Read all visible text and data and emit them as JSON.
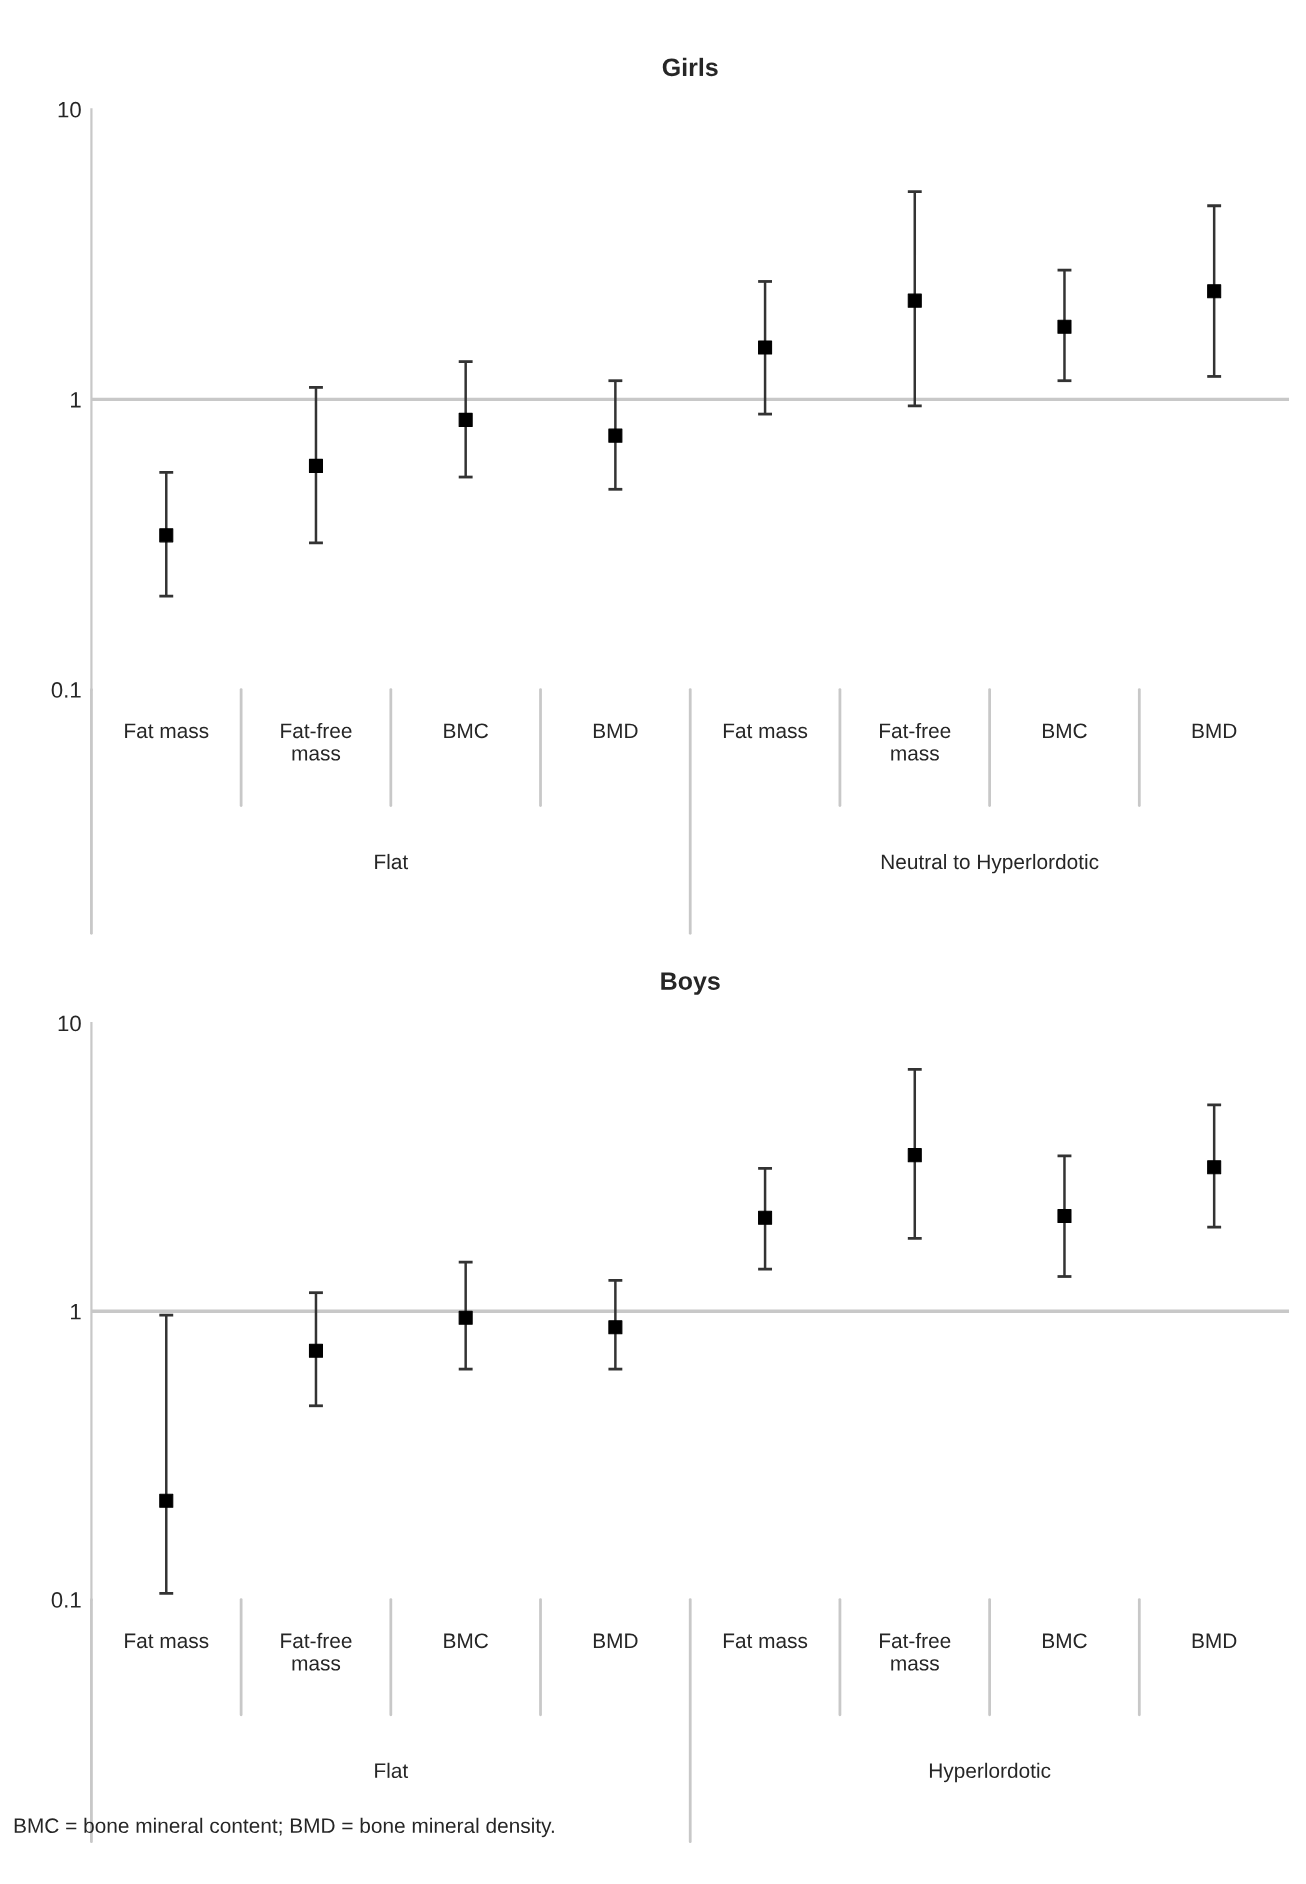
{
  "chart_data": [
    {
      "type": "scatter",
      "title": "Girls",
      "categories": [
        "Fat mass",
        "Fat-free\nmass",
        "BMC",
        "BMD",
        "Fat mass",
        "Fat-free\nmass",
        "BMC",
        "BMD"
      ],
      "series": [
        {
          "color": "#000000",
          "values": [
            0.34,
            0.59,
            0.85,
            0.75,
            1.51,
            2.19,
            1.78,
            2.36
          ],
          "errors": [
            [
              0.21,
              0.56
            ],
            [
              0.32,
              1.1
            ],
            [
              0.54,
              1.35
            ],
            [
              0.49,
              1.16
            ],
            [
              0.89,
              2.55
            ],
            [
              0.95,
              5.2
            ],
            [
              1.16,
              2.79
            ],
            [
              1.2,
              4.65
            ]
          ]
        }
      ],
      "log": "y",
      "ylim": [
        0.1,
        10
      ],
      "yticks": [
        0.1,
        1,
        10
      ],
      "grid": false,
      "marker": "square",
      "ref_lines": [
        {
          "axis": "y",
          "value": 1,
          "color": "#c8c8c8"
        }
      ],
      "annotations": [
        "Flat",
        "Neutral to Hyperlordotic"
      ]
    },
    {
      "type": "scatter",
      "title": "Boys",
      "categories": [
        "Fat mass",
        "Fat-free\nmass",
        "BMC",
        "BMD",
        "Fat mass",
        "Fat-free\nmass",
        "BMC",
        "BMD"
      ],
      "series": [
        {
          "color": "#000000",
          "values": [
            0.22,
            0.73,
            0.95,
            0.88,
            2.11,
            3.48,
            2.14,
            3.16
          ],
          "errors": [
            [
              0.105,
              0.97
            ],
            [
              0.47,
              1.16
            ],
            [
              0.63,
              1.48
            ],
            [
              0.63,
              1.28
            ],
            [
              1.4,
              3.13
            ],
            [
              1.79,
              6.9
            ],
            [
              1.32,
              3.46
            ],
            [
              1.96,
              5.2
            ]
          ]
        }
      ],
      "log": "y",
      "ylim": [
        0.1,
        10
      ],
      "yticks": [
        0.1,
        1,
        10
      ],
      "grid": false,
      "marker": "square",
      "ref_lines": [
        {
          "axis": "y",
          "value": 1,
          "color": "#c8c8c8"
        }
      ],
      "annotations": [
        "Flat",
        "Hyperlordotic",
        "BMC = bone mineral content; BMD = bone mineral density."
      ]
    }
  ]
}
